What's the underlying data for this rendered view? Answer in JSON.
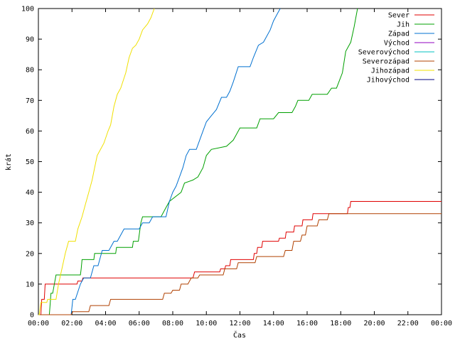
{
  "chart_data": {
    "type": "line",
    "title": "",
    "xlabel": "Čas",
    "ylabel": "krát",
    "xlim": [
      0,
      24
    ],
    "ylim": [
      0,
      100
    ],
    "x_unit": "hours",
    "x_ticks": [
      {
        "value": 0,
        "label": "00:00"
      },
      {
        "value": 2,
        "label": "02:00"
      },
      {
        "value": 4,
        "label": "04:00"
      },
      {
        "value": 6,
        "label": "06:00"
      },
      {
        "value": 8,
        "label": "08:00"
      },
      {
        "value": 10,
        "label": "10:00"
      },
      {
        "value": 12,
        "label": "12:00"
      },
      {
        "value": 14,
        "label": "14:00"
      },
      {
        "value": 16,
        "label": "16:00"
      },
      {
        "value": 18,
        "label": "18:00"
      },
      {
        "value": 20,
        "label": "20:00"
      },
      {
        "value": 22,
        "label": "22:00"
      },
      {
        "value": 24,
        "label": "00:00"
      }
    ],
    "y_ticks": [
      0,
      10,
      20,
      30,
      40,
      50,
      60,
      70,
      80,
      90,
      100
    ],
    "grid": false,
    "legend_position": "top-right",
    "series": [
      {
        "name": "Sever",
        "color": "#e00000",
        "points": [
          [
            0,
            0
          ],
          [
            0.15,
            0
          ],
          [
            0.2,
            5
          ],
          [
            0.35,
            5
          ],
          [
            0.4,
            10
          ],
          [
            1.1,
            10
          ],
          [
            2.3,
            10
          ],
          [
            2.35,
            11
          ],
          [
            2.6,
            11
          ],
          [
            2.65,
            12
          ],
          [
            6.2,
            12
          ],
          [
            9.2,
            12
          ],
          [
            9.3,
            14
          ],
          [
            10.3,
            14
          ],
          [
            10.8,
            14
          ],
          [
            10.85,
            15
          ],
          [
            11.1,
            15
          ],
          [
            11.15,
            16
          ],
          [
            11.4,
            16
          ],
          [
            11.45,
            18
          ],
          [
            12.8,
            18
          ],
          [
            12.85,
            20
          ],
          [
            13,
            20
          ],
          [
            13.05,
            22
          ],
          [
            13.3,
            22
          ],
          [
            13.35,
            24
          ],
          [
            14.3,
            24
          ],
          [
            14.35,
            25
          ],
          [
            14.7,
            25
          ],
          [
            14.75,
            27
          ],
          [
            15.2,
            27
          ],
          [
            15.25,
            29
          ],
          [
            15.7,
            29
          ],
          [
            15.75,
            31
          ],
          [
            16.3,
            31
          ],
          [
            16.35,
            33
          ],
          [
            18.4,
            33
          ],
          [
            18.45,
            35
          ],
          [
            18.55,
            35
          ],
          [
            18.6,
            37
          ],
          [
            24,
            37
          ]
        ]
      },
      {
        "name": "Jih",
        "color": "#00a000",
        "points": [
          [
            0,
            0
          ],
          [
            0.65,
            0
          ],
          [
            0.75,
            7
          ],
          [
            0.85,
            7
          ],
          [
            1.05,
            13
          ],
          [
            2.5,
            13
          ],
          [
            2.55,
            15
          ],
          [
            2.6,
            18
          ],
          [
            3.3,
            18
          ],
          [
            3.35,
            20
          ],
          [
            4.6,
            20
          ],
          [
            4.65,
            22
          ],
          [
            5.6,
            22
          ],
          [
            5.65,
            24
          ],
          [
            5.95,
            24
          ],
          [
            6.1,
            30
          ],
          [
            6.2,
            32
          ],
          [
            7.3,
            32
          ],
          [
            7.6,
            35
          ],
          [
            7.8,
            37
          ],
          [
            8.5,
            40
          ],
          [
            8.7,
            43
          ],
          [
            9.2,
            44
          ],
          [
            9.5,
            45
          ],
          [
            9.8,
            48
          ],
          [
            10,
            52
          ],
          [
            10.3,
            54
          ],
          [
            11.2,
            55
          ],
          [
            11.6,
            57
          ],
          [
            11.8,
            59
          ],
          [
            12,
            61
          ],
          [
            13,
            61
          ],
          [
            13.2,
            64
          ],
          [
            14,
            64
          ],
          [
            14.3,
            66
          ],
          [
            15.1,
            66
          ],
          [
            15.3,
            68
          ],
          [
            15.45,
            70
          ],
          [
            16.1,
            70
          ],
          [
            16.3,
            72
          ],
          [
            17.2,
            72
          ],
          [
            17.45,
            74
          ],
          [
            17.75,
            74
          ],
          [
            18.1,
            79
          ],
          [
            18.3,
            86
          ],
          [
            18.6,
            89
          ],
          [
            18.8,
            94
          ],
          [
            18.9,
            97
          ],
          [
            19,
            100
          ]
        ]
      },
      {
        "name": "Západ",
        "color": "#0070d0",
        "points": [
          [
            0,
            0
          ],
          [
            1.95,
            0
          ],
          [
            2.05,
            5
          ],
          [
            2.2,
            5
          ],
          [
            2.5,
            10
          ],
          [
            2.7,
            12
          ],
          [
            3.1,
            12
          ],
          [
            3.3,
            16
          ],
          [
            3.55,
            16
          ],
          [
            3.8,
            21
          ],
          [
            4.2,
            21
          ],
          [
            4.5,
            24
          ],
          [
            4.7,
            24
          ],
          [
            4.9,
            26
          ],
          [
            5.1,
            28
          ],
          [
            6,
            28
          ],
          [
            6.2,
            30
          ],
          [
            6.6,
            30
          ],
          [
            6.8,
            32
          ],
          [
            7.6,
            32
          ],
          [
            7.8,
            37
          ],
          [
            8,
            40
          ],
          [
            8.2,
            42
          ],
          [
            8.4,
            45
          ],
          [
            8.6,
            48
          ],
          [
            8.8,
            52
          ],
          [
            9,
            54
          ],
          [
            9.4,
            54
          ],
          [
            9.6,
            57
          ],
          [
            9.8,
            60
          ],
          [
            10,
            63
          ],
          [
            10.3,
            65
          ],
          [
            10.6,
            67
          ],
          [
            10.9,
            71
          ],
          [
            11.2,
            71
          ],
          [
            11.4,
            73
          ],
          [
            11.6,
            76
          ],
          [
            11.9,
            81
          ],
          [
            12.6,
            81
          ],
          [
            12.8,
            84
          ],
          [
            13.1,
            88
          ],
          [
            13.4,
            89
          ],
          [
            13.8,
            93
          ],
          [
            14,
            96
          ],
          [
            14.3,
            99
          ],
          [
            14.4,
            100
          ]
        ]
      },
      {
        "name": "Východ",
        "color": "#9000c0",
        "points": []
      },
      {
        "name": "Severovýchod",
        "color": "#00c0c0",
        "points": []
      },
      {
        "name": "Severozápad",
        "color": "#b04000",
        "points": [
          [
            0,
            0
          ],
          [
            1.95,
            0
          ],
          [
            2.05,
            1
          ],
          [
            3,
            1
          ],
          [
            3.1,
            3
          ],
          [
            4.2,
            3
          ],
          [
            4.3,
            5
          ],
          [
            5.2,
            5
          ],
          [
            6.2,
            5
          ],
          [
            7.4,
            5
          ],
          [
            7.5,
            7
          ],
          [
            7.9,
            7
          ],
          [
            8,
            8
          ],
          [
            8.4,
            8
          ],
          [
            8.5,
            10
          ],
          [
            8.9,
            10
          ],
          [
            9.1,
            12
          ],
          [
            9.5,
            12
          ],
          [
            9.6,
            13
          ],
          [
            11,
            13
          ],
          [
            11.1,
            15
          ],
          [
            11.8,
            15
          ],
          [
            11.9,
            17
          ],
          [
            12.9,
            17
          ],
          [
            13,
            19
          ],
          [
            14.6,
            19
          ],
          [
            14.7,
            21
          ],
          [
            15.1,
            21
          ],
          [
            15.2,
            24
          ],
          [
            15.6,
            24
          ],
          [
            15.7,
            26
          ],
          [
            15.9,
            26
          ],
          [
            16,
            29
          ],
          [
            16.6,
            29
          ],
          [
            16.7,
            31
          ],
          [
            17.2,
            31
          ],
          [
            17.3,
            33
          ],
          [
            24,
            33
          ]
        ]
      },
      {
        "name": "Jihozápad",
        "color": "#f0e000",
        "points": [
          [
            0,
            0
          ],
          [
            0.05,
            0
          ],
          [
            0.15,
            4
          ],
          [
            0.5,
            4
          ],
          [
            0.55,
            5
          ],
          [
            1.05,
            5
          ],
          [
            1.2,
            10
          ],
          [
            1.4,
            15
          ],
          [
            1.6,
            20
          ],
          [
            1.8,
            24
          ],
          [
            2.2,
            24
          ],
          [
            2.35,
            28
          ],
          [
            2.6,
            32
          ],
          [
            2.8,
            36
          ],
          [
            3,
            40
          ],
          [
            3.2,
            44
          ],
          [
            3.35,
            48
          ],
          [
            3.5,
            52
          ],
          [
            3.7,
            54
          ],
          [
            3.9,
            56
          ],
          [
            4.15,
            60
          ],
          [
            4.3,
            62
          ],
          [
            4.5,
            68
          ],
          [
            4.7,
            72
          ],
          [
            4.9,
            74
          ],
          [
            5.2,
            79
          ],
          [
            5.4,
            84
          ],
          [
            5.6,
            87
          ],
          [
            5.8,
            88
          ],
          [
            6,
            90
          ],
          [
            6.2,
            93
          ],
          [
            6.5,
            95
          ],
          [
            6.7,
            97
          ],
          [
            6.9,
            100
          ]
        ]
      },
      {
        "name": "Jihovýchod",
        "color": "#000080",
        "points": []
      }
    ]
  }
}
